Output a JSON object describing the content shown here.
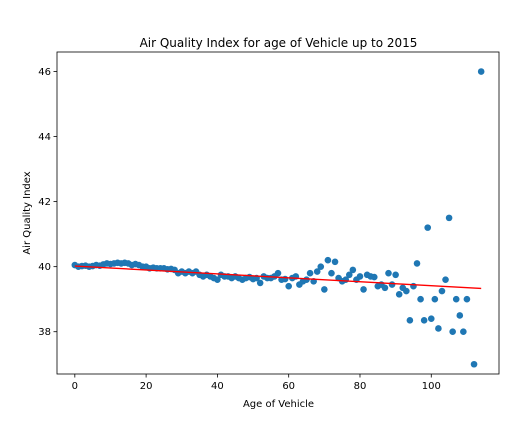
{
  "chart_data": {
    "type": "scatter",
    "title": "Air Quality Index for age of Vehicle up to 2015",
    "xlabel": "Age of Vehicle",
    "ylabel": "Air Quality Index",
    "xlim": [
      -5,
      119
    ],
    "ylim": [
      36.7,
      46.6
    ],
    "xticks": [
      0,
      20,
      40,
      60,
      80,
      100
    ],
    "yticks": [
      38,
      40,
      42,
      44,
      46
    ],
    "grid": false,
    "legend": "none",
    "point_color": "#1f77b4",
    "trend_color": "#ff0000",
    "series": [
      {
        "values": [
          [
            0,
            40.05
          ],
          [
            1,
            40.0
          ],
          [
            2,
            40.02
          ],
          [
            3,
            40.03
          ],
          [
            4,
            40.0
          ],
          [
            5,
            40.02
          ],
          [
            6,
            40.05
          ],
          [
            7,
            40.03
          ],
          [
            8,
            40.07
          ],
          [
            9,
            40.1
          ],
          [
            10,
            40.08
          ],
          [
            11,
            40.1
          ],
          [
            12,
            40.12
          ],
          [
            13,
            40.1
          ],
          [
            14,
            40.12
          ],
          [
            15,
            40.1
          ],
          [
            16,
            40.05
          ],
          [
            17,
            40.08
          ],
          [
            18,
            40.05
          ],
          [
            19,
            40.0
          ],
          [
            20,
            40.0
          ],
          [
            21,
            39.95
          ],
          [
            22,
            39.97
          ],
          [
            23,
            39.95
          ],
          [
            24,
            39.95
          ],
          [
            25,
            39.95
          ],
          [
            26,
            39.92
          ],
          [
            27,
            39.93
          ],
          [
            28,
            39.9
          ],
          [
            29,
            39.8
          ],
          [
            30,
            39.85
          ],
          [
            31,
            39.8
          ],
          [
            32,
            39.85
          ],
          [
            33,
            39.8
          ],
          [
            34,
            39.85
          ],
          [
            35,
            39.75
          ],
          [
            36,
            39.7
          ],
          [
            37,
            39.75
          ],
          [
            38,
            39.7
          ],
          [
            39,
            39.65
          ],
          [
            40,
            39.6
          ],
          [
            41,
            39.75
          ],
          [
            42,
            39.7
          ],
          [
            43,
            39.7
          ],
          [
            44,
            39.65
          ],
          [
            45,
            39.7
          ],
          [
            46,
            39.65
          ],
          [
            47,
            39.6
          ],
          [
            48,
            39.65
          ],
          [
            49,
            39.68
          ],
          [
            50,
            39.62
          ],
          [
            51,
            39.65
          ],
          [
            52,
            39.5
          ],
          [
            53,
            39.7
          ],
          [
            54,
            39.65
          ],
          [
            55,
            39.65
          ],
          [
            56,
            39.7
          ],
          [
            57,
            39.8
          ],
          [
            58,
            39.6
          ],
          [
            59,
            39.62
          ],
          [
            60,
            39.4
          ],
          [
            61,
            39.65
          ],
          [
            62,
            39.7
          ],
          [
            63,
            39.45
          ],
          [
            64,
            39.55
          ],
          [
            65,
            39.6
          ],
          [
            66,
            39.8
          ],
          [
            67,
            39.55
          ],
          [
            68,
            39.85
          ],
          [
            69,
            40.0
          ],
          [
            70,
            39.3
          ],
          [
            71,
            40.2
          ],
          [
            72,
            39.8
          ],
          [
            73,
            40.15
          ],
          [
            74,
            39.65
          ],
          [
            75,
            39.55
          ],
          [
            76,
            39.6
          ],
          [
            77,
            39.75
          ],
          [
            78,
            39.9
          ],
          [
            79,
            39.6
          ],
          [
            80,
            39.7
          ],
          [
            81,
            39.3
          ],
          [
            82,
            39.75
          ],
          [
            83,
            39.7
          ],
          [
            84,
            39.68
          ],
          [
            85,
            39.4
          ],
          [
            86,
            39.45
          ],
          [
            87,
            39.35
          ],
          [
            88,
            39.8
          ],
          [
            89,
            39.45
          ],
          [
            90,
            39.75
          ],
          [
            91,
            39.15
          ],
          [
            92,
            39.35
          ],
          [
            93,
            39.25
          ],
          [
            94,
            38.35
          ],
          [
            95,
            39.4
          ],
          [
            96,
            40.1
          ],
          [
            97,
            39.0
          ],
          [
            98,
            38.35
          ],
          [
            99,
            41.2
          ],
          [
            100,
            38.4
          ],
          [
            101,
            39.0
          ],
          [
            102,
            38.1
          ],
          [
            103,
            39.25
          ],
          [
            104,
            39.6
          ],
          [
            105,
            41.5
          ],
          [
            106,
            38.0
          ],
          [
            107,
            39.0
          ],
          [
            108,
            38.5
          ],
          [
            109,
            38.0
          ],
          [
            110,
            39.0
          ],
          [
            112,
            37.0
          ],
          [
            114,
            46.0
          ]
        ]
      }
    ],
    "trend_line": {
      "x": [
        0,
        114
      ],
      "y": [
        40.02,
        39.33
      ]
    }
  }
}
